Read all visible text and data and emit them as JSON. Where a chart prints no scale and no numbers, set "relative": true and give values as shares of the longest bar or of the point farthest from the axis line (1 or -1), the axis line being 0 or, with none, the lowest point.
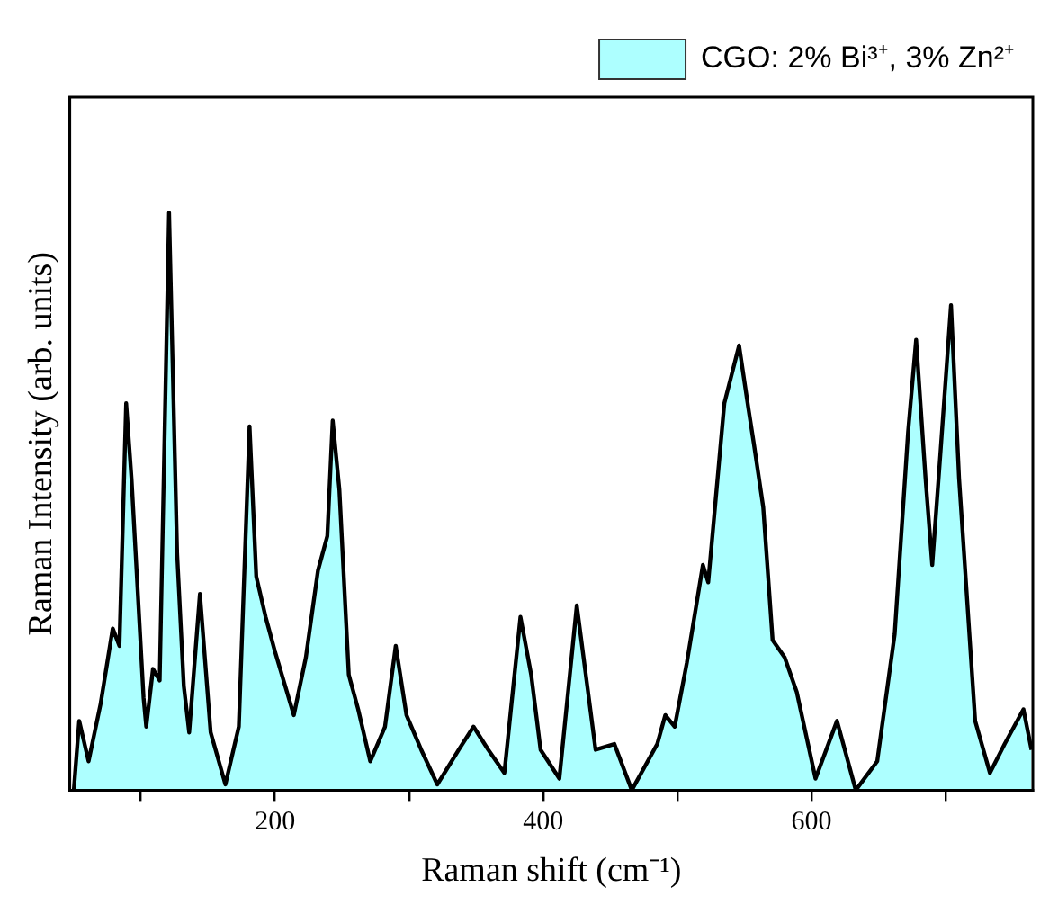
{
  "chart_data": {
    "type": "area",
    "xlabel": "Raman shift (cm⁻¹)",
    "ylabel": "Raman Intensity (arb. units)",
    "relative": true,
    "legend": "top right",
    "grid": false,
    "xlim": [
      47,
      765
    ],
    "xticks": [
      {
        "value": 100,
        "label": null
      },
      200,
      {
        "value": 300,
        "label": null
      },
      400,
      {
        "value": 500,
        "label": null
      },
      600,
      {
        "value": 700,
        "label": null
      }
    ],
    "series": [
      {
        "name": "CGO: 2% Bi³⁺, 3% Zn²⁺",
        "color": "#adffff",
        "x": [
          50,
          54,
          61,
          70,
          79,
          84,
          89,
          93,
          102,
          104,
          109,
          114,
          121,
          127,
          132,
          136,
          144,
          152,
          163,
          173,
          181,
          186,
          193,
          200,
          214,
          223,
          232,
          239,
          243,
          248,
          255,
          262,
          271,
          282,
          290,
          298,
          309,
          321,
          337,
          348,
          359,
          371,
          383,
          391,
          398,
          412,
          425,
          439,
          453,
          466,
          485,
          491,
          498,
          507,
          519,
          523,
          535,
          546,
          553,
          557,
          564,
          571,
          580,
          589,
          603,
          619,
          633,
          649,
          662,
          672,
          678,
          685,
          690,
          696,
          704,
          710,
          722,
          733,
          744,
          758,
          764
        ],
        "values": [
          0,
          0.12,
          0.05,
          0.15,
          0.28,
          0.25,
          0.67,
          0.54,
          0.16,
          0.11,
          0.21,
          0.19,
          1.0,
          0.41,
          0.18,
          0.1,
          0.34,
          0.1,
          0.01,
          0.11,
          0.63,
          0.37,
          0.3,
          0.24,
          0.13,
          0.23,
          0.38,
          0.44,
          0.64,
          0.52,
          0.2,
          0.14,
          0.05,
          0.11,
          0.25,
          0.13,
          0.07,
          0.01,
          0.07,
          0.11,
          0.07,
          0.03,
          0.3,
          0.2,
          0.07,
          0.02,
          0.32,
          0.07,
          0.08,
          0,
          0.08,
          0.13,
          0.11,
          0.22,
          0.39,
          0.36,
          0.67,
          0.77,
          0.66,
          0.6,
          0.49,
          0.26,
          0.23,
          0.17,
          0.02,
          0.12,
          0,
          0.05,
          0.27,
          0.62,
          0.78,
          0.54,
          0.39,
          0.58,
          0.84,
          0.54,
          0.12,
          0.03,
          0.08,
          0.14,
          0.07
        ]
      }
    ]
  }
}
